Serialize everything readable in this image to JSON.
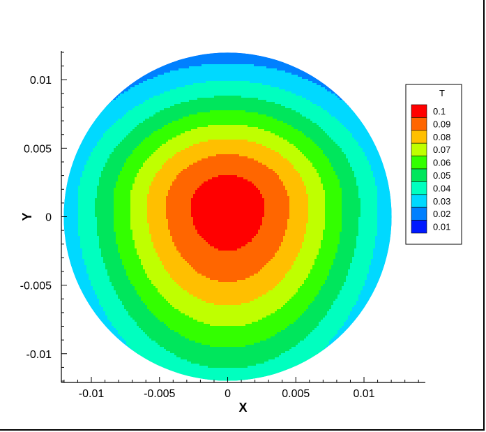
{
  "chart_data": {
    "type": "contour",
    "variable": "T",
    "xlabel": "X",
    "ylabel": "Y",
    "xlim": [
      -0.0122,
      0.0145
    ],
    "ylim": [
      -0.0121,
      0.0121
    ],
    "x_ticks": [
      {
        "value": -0.01,
        "label": "-0.01"
      },
      {
        "value": -0.005,
        "label": "-0.005"
      },
      {
        "value": 0,
        "label": "0"
      },
      {
        "value": 0.005,
        "label": "0.005"
      },
      {
        "value": 0.01,
        "label": "0.01"
      }
    ],
    "y_ticks": [
      {
        "value": 0.01,
        "label": "0.01"
      },
      {
        "value": 0.005,
        "label": "0.005"
      },
      {
        "value": 0,
        "label": "0"
      },
      {
        "value": -0.005,
        "label": "-0.005"
      },
      {
        "value": -0.01,
        "label": "-0.01"
      }
    ],
    "domain": {
      "shape": "circle",
      "center": [
        0,
        0
      ],
      "radius": 0.012
    },
    "legend": {
      "title": "T",
      "placement": "right",
      "levels": [
        {
          "label": "0.1",
          "value": 0.1,
          "color": "#ff0000"
        },
        {
          "label": "0.09",
          "value": 0.09,
          "color": "#ff6600"
        },
        {
          "label": "0.08",
          "value": 0.08,
          "color": "#ffbf00"
        },
        {
          "label": "0.07",
          "value": 0.07,
          "color": "#bfff00"
        },
        {
          "label": "0.06",
          "value": 0.06,
          "color": "#33ff00"
        },
        {
          "label": "0.05",
          "value": 0.05,
          "color": "#00e65c"
        },
        {
          "label": "0.04",
          "value": 0.04,
          "color": "#00ffbf"
        },
        {
          "label": "0.03",
          "value": 0.03,
          "color": "#00d9ff"
        },
        {
          "label": "0.02",
          "value": 0.02,
          "color": "#0080ff"
        },
        {
          "label": "0.01",
          "value": 0.01,
          "color": "#0019ff"
        }
      ]
    },
    "field": {
      "peak_center": [
        0.0,
        0.0008
      ],
      "sigma_x": 0.0075,
      "sigma_y_up": 0.0062,
      "sigma_y_down": 0.0092,
      "peak_value": 0.106
    }
  }
}
